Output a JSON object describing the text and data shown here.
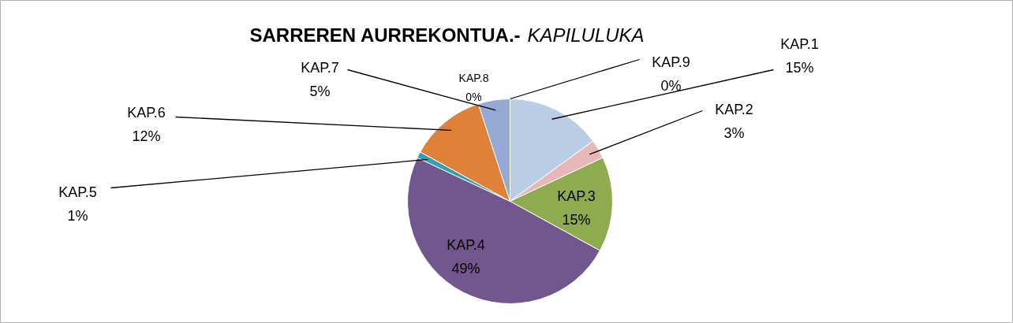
{
  "chart_data": {
    "type": "pie",
    "title": "SARREREN AURREKONTUA.-",
    "subtitle": "KAPILULUKA",
    "categories": [
      "KAP.1",
      "KAP.2",
      "KAP.3",
      "KAP.4",
      "KAP.5",
      "KAP.6",
      "KAP.7",
      "KAP.8",
      "KAP.9"
    ],
    "values": [
      15,
      3,
      15,
      49,
      1,
      12,
      5,
      0,
      0
    ],
    "colors": [
      "#b9cde5",
      "#e6b9b8",
      "#8eab4f",
      "#72578f",
      "#31a0b5",
      "#e0813a",
      "#95a9d4",
      "#4f81bd",
      "#c0504d"
    ],
    "value_labels": [
      "15%",
      "3%",
      "15%",
      "49%",
      "1%",
      "12%",
      "5%",
      "0%",
      "0%"
    ]
  }
}
